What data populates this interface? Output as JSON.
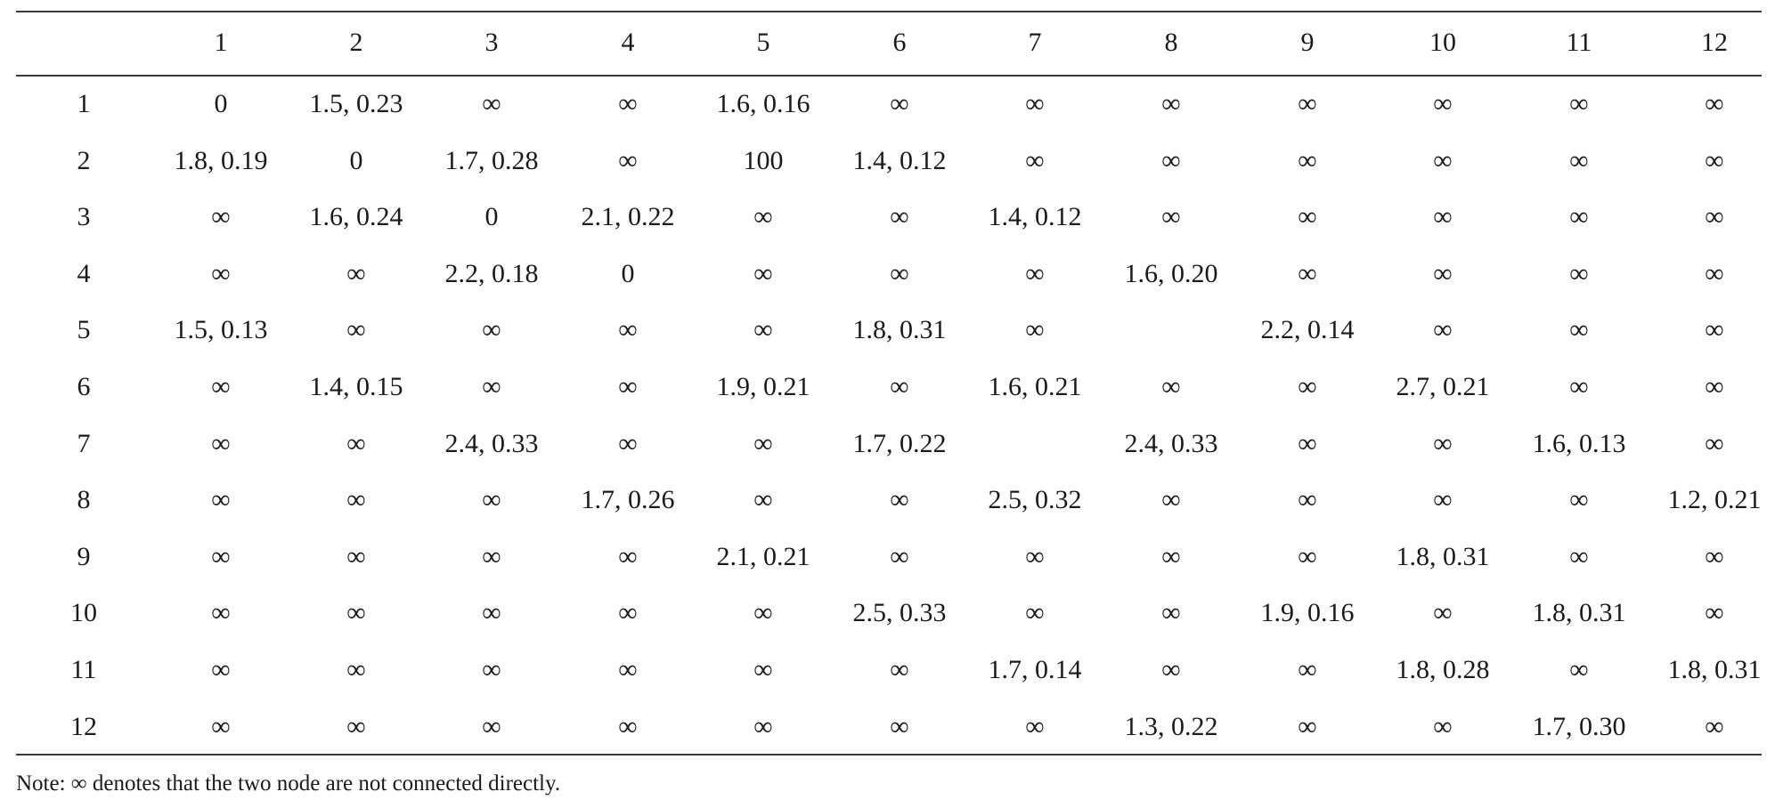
{
  "table": {
    "column_headers": [
      "",
      "1",
      "2",
      "3",
      "4",
      "5",
      "6",
      "7",
      "8",
      "9",
      "10",
      "11",
      "12"
    ],
    "rows": [
      {
        "label": "1",
        "cells": [
          "0",
          "1.5, 0.23",
          "∞",
          "∞",
          "1.6, 0.16",
          "∞",
          "∞",
          "∞",
          "∞",
          "∞",
          "∞",
          "∞"
        ]
      },
      {
        "label": "2",
        "cells": [
          "1.8, 0.19",
          "0",
          "1.7, 0.28",
          "∞",
          "100",
          "1.4, 0.12",
          "∞",
          "∞",
          "∞",
          "∞",
          "∞",
          "∞"
        ]
      },
      {
        "label": "3",
        "cells": [
          "∞",
          "1.6, 0.24",
          "0",
          "2.1, 0.22",
          "∞",
          "∞",
          "1.4, 0.12",
          "∞",
          "∞",
          "∞",
          "∞",
          "∞"
        ]
      },
      {
        "label": "4",
        "cells": [
          "∞",
          "∞",
          "2.2, 0.18",
          "0",
          "∞",
          "∞",
          "∞",
          "1.6, 0.20",
          "∞",
          "∞",
          "∞",
          "∞"
        ]
      },
      {
        "label": "5",
        "cells": [
          "1.5, 0.13",
          "∞",
          "∞",
          "∞",
          "∞",
          "1.8, 0.31",
          "∞",
          "",
          "2.2, 0.14",
          "∞",
          "∞",
          "∞"
        ]
      },
      {
        "label": "6",
        "cells": [
          "∞",
          "1.4, 0.15",
          "∞",
          "∞",
          "1.9, 0.21",
          "∞",
          "1.6, 0.21",
          "∞",
          "∞",
          "2.7, 0.21",
          "∞",
          "∞"
        ]
      },
      {
        "label": "7",
        "cells": [
          "∞",
          "∞",
          "2.4, 0.33",
          "∞",
          "∞",
          "1.7, 0.22",
          "",
          "2.4, 0.33",
          "∞",
          "∞",
          "1.6, 0.13",
          "∞"
        ]
      },
      {
        "label": "8",
        "cells": [
          "∞",
          "∞",
          "∞",
          "1.7, 0.26",
          "∞",
          "∞",
          "2.5, 0.32",
          "∞",
          "∞",
          "∞",
          "∞",
          "1.2, 0.21"
        ]
      },
      {
        "label": "9",
        "cells": [
          "∞",
          "∞",
          "∞",
          "∞",
          "2.1, 0.21",
          "∞",
          "∞",
          "∞",
          "∞",
          "1.8, 0.31",
          "∞",
          "∞"
        ]
      },
      {
        "label": "10",
        "cells": [
          "∞",
          "∞",
          "∞",
          "∞",
          "∞",
          "2.5, 0.33",
          "∞",
          "∞",
          "1.9, 0.16",
          "∞",
          "1.8, 0.31",
          "∞"
        ]
      },
      {
        "label": "11",
        "cells": [
          "∞",
          "∞",
          "∞",
          "∞",
          "∞",
          "∞",
          "1.7, 0.14",
          "∞",
          "∞",
          "1.8, 0.28",
          "∞",
          "1.8, 0.31"
        ]
      },
      {
        "label": "12",
        "cells": [
          "∞",
          "∞",
          "∞",
          "∞",
          "∞",
          "∞",
          "∞",
          "1.3, 0.22",
          "∞",
          "∞",
          "1.7, 0.30",
          "∞"
        ]
      }
    ]
  },
  "note": "Note: ∞ denotes that the two node are not connected directly."
}
